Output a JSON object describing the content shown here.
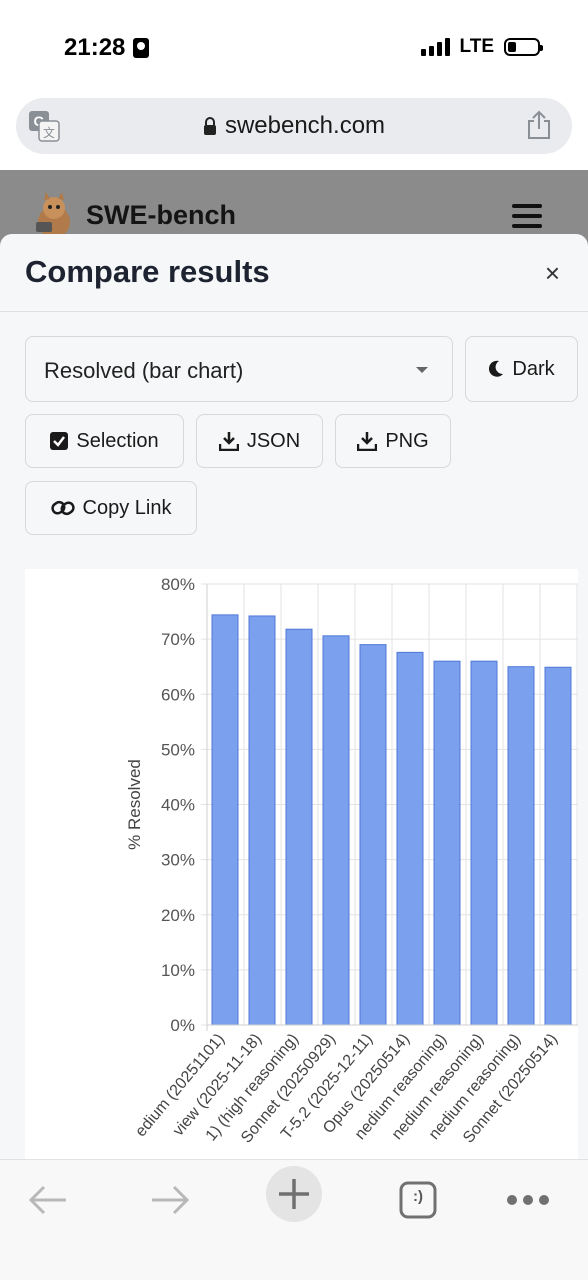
{
  "status_bar": {
    "time": "21:28",
    "network": "LTE"
  },
  "browser": {
    "url": "swebench.com",
    "icons": [
      "translate-icon",
      "lock-icon",
      "share-icon"
    ]
  },
  "site": {
    "title": "SWE-bench"
  },
  "modal": {
    "title": "Compare results",
    "close_label": "×",
    "view_select": {
      "value": "Resolved (bar chart)"
    },
    "buttons": {
      "dark": "Dark",
      "selection": "Selection",
      "json": "JSON",
      "png": "PNG",
      "copy_link": "Copy Link"
    }
  },
  "chart_data": {
    "type": "bar",
    "ylabel": "% Resolved",
    "xlabel": "",
    "ylim": [
      0,
      80
    ],
    "yticks": [
      "0%",
      "10%",
      "20%",
      "30%",
      "40%",
      "50%",
      "60%",
      "70%",
      "80%"
    ],
    "categories": [
      "edium (20251101)",
      "view (2025-11-18)",
      "1) (high reasoning)",
      "Sonnet (20250929)",
      "T-5.2 (2025-12-11)",
      " Opus (20250514)",
      "nedium reasoning)",
      "nedium reasoning)",
      "nedium reasoning)",
      "Sonnet (20250514)"
    ],
    "values": [
      74.4,
      74.2,
      71.8,
      70.6,
      69.0,
      67.6,
      66.0,
      66.0,
      65.0,
      64.9
    ],
    "bar_color": "#7ba0ee",
    "bar_border": "#4f79d6",
    "grid": true
  },
  "toolbar": {
    "tabs_label": ":)",
    "icons": [
      "back-arrow-icon",
      "forward-arrow-icon",
      "plus-icon",
      "tabs-icon",
      "more-icon"
    ]
  }
}
